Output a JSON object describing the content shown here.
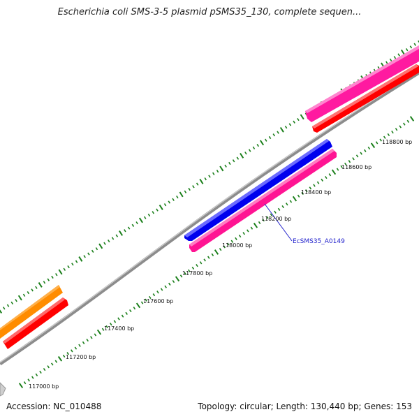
{
  "title": "Escherichia coli SMS-3-5 plasmid pSMS35_130, complete sequen...",
  "footer": {
    "accession": "Accession: NC_010488",
    "summary": "Topology: circular; Length: 130,440 bp; Genes: 153"
  },
  "colors": {
    "backbone": "#8c8c8c",
    "tick": "#1a7f1a",
    "orange_gene": "#ff8c00",
    "red_gene": "#ff0000",
    "pink_gene": "#ff1493",
    "magenta_gene": "#ff1aa0",
    "blue_gene": "#0000ee",
    "grey_gene": "#c8c8c8",
    "label": "#2222cc"
  },
  "ticks": [
    {
      "label": "117000 bp"
    },
    {
      "label": "117200 bp"
    },
    {
      "label": "117400 bp"
    },
    {
      "label": "117600 bp"
    },
    {
      "label": "117800 bp"
    },
    {
      "label": "118000 bp"
    },
    {
      "label": "118200 bp"
    },
    {
      "label": "118400 bp"
    },
    {
      "label": "118600 bp"
    },
    {
      "label": "118800 bp"
    }
  ],
  "genes": [
    {
      "name": "grey-gene",
      "color": "grey"
    },
    {
      "name": "orange-gene",
      "color": "orange"
    },
    {
      "name": "red-gene-left",
      "color": "red"
    },
    {
      "name": "blue-gene",
      "color": "blue"
    },
    {
      "name": "pink-gene-ecsms35-a0149",
      "color": "pink"
    },
    {
      "name": "magenta-gene-top",
      "color": "magenta"
    },
    {
      "name": "red-gene-top",
      "color": "red"
    }
  ],
  "annotations": [
    {
      "text": "EcSMS35_A0149"
    }
  ]
}
